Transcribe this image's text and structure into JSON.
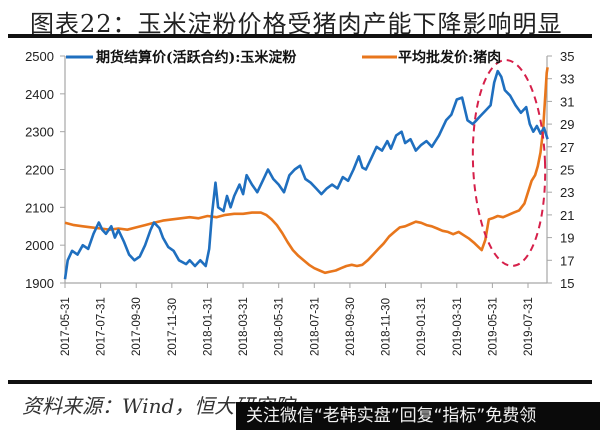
{
  "header": {
    "title": "图表22：玉米淀粉价格受猪肉产能下降影响明显"
  },
  "footer": {
    "source": "资料来源：Wind，恒大研究院",
    "watermark": "关注微信“老韩实盘”回复“指标”免费领"
  },
  "colors": {
    "series_corn": "#1f6fbf",
    "series_pork": "#e8761c",
    "highlight_ellipse": "#d6204a",
    "axis": "#a6a6a6"
  },
  "chart_data": {
    "type": "line",
    "title": "图表22：玉米淀粉价格受猪肉产能下降影响明显",
    "xlabel": "",
    "ylabel_left": "",
    "ylabel_right": "",
    "legend_position": "top",
    "grid": false,
    "x_ticks": [
      "2017-05-31",
      "2017-07-31",
      "2017-09-30",
      "2017-11-30",
      "2018-01-31",
      "2018-03-31",
      "2018-05-31",
      "2018-07-31",
      "2018-09-30",
      "2018-11-30",
      "2019-01-31",
      "2019-03-31",
      "2019-05-31",
      "2019-07-31"
    ],
    "y_left": {
      "ticks": [
        "2500",
        "2400",
        "2300",
        "2200",
        "2100",
        "2000",
        "1900"
      ],
      "range": [
        1900,
        2500
      ]
    },
    "y_right": {
      "ticks": [
        "35",
        "33",
        "31",
        "29",
        "27",
        "25",
        "23",
        "21",
        "19",
        "17",
        "15"
      ],
      "range": [
        15,
        35
      ]
    },
    "x_range_months": [
      0,
      27.1
    ],
    "annotation": "Red dashed ellipse highlighting 2019-04 to 2019-08 where pork price surges and corn starch price falls",
    "series": [
      {
        "name": "期货结算价(活跃合约):玉米淀粉",
        "axis": "left",
        "color": "#1f6fbf",
        "points": [
          [
            0,
            1910
          ],
          [
            0.15,
            1960
          ],
          [
            0.4,
            1985
          ],
          [
            0.7,
            1975
          ],
          [
            1.0,
            2000
          ],
          [
            1.3,
            1990
          ],
          [
            1.6,
            2030
          ],
          [
            1.9,
            2060
          ],
          [
            2.1,
            2040
          ],
          [
            2.3,
            2030
          ],
          [
            2.6,
            2050
          ],
          [
            2.8,
            2020
          ],
          [
            3.0,
            2040
          ],
          [
            3.3,
            2010
          ],
          [
            3.6,
            1975
          ],
          [
            3.9,
            1960
          ],
          [
            4.2,
            1970
          ],
          [
            4.5,
            2000
          ],
          [
            4.8,
            2040
          ],
          [
            5.0,
            2060
          ],
          [
            5.3,
            2045
          ],
          [
            5.5,
            2020
          ],
          [
            5.8,
            1995
          ],
          [
            6.1,
            1985
          ],
          [
            6.4,
            1960
          ],
          [
            6.8,
            1950
          ],
          [
            7.0,
            1960
          ],
          [
            7.3,
            1945
          ],
          [
            7.6,
            1960
          ],
          [
            7.9,
            1945
          ],
          [
            8.1,
            1990
          ],
          [
            8.25,
            2080
          ],
          [
            8.45,
            2165
          ],
          [
            8.6,
            2100
          ],
          [
            8.9,
            2090
          ],
          [
            9.1,
            2130
          ],
          [
            9.3,
            2100
          ],
          [
            9.5,
            2130
          ],
          [
            9.8,
            2160
          ],
          [
            10.0,
            2135
          ],
          [
            10.2,
            2185
          ],
          [
            10.5,
            2160
          ],
          [
            10.8,
            2140
          ],
          [
            11.1,
            2170
          ],
          [
            11.4,
            2200
          ],
          [
            11.7,
            2175
          ],
          [
            12.0,
            2160
          ],
          [
            12.3,
            2140
          ],
          [
            12.6,
            2185
          ],
          [
            12.9,
            2200
          ],
          [
            13.2,
            2210
          ],
          [
            13.5,
            2175
          ],
          [
            13.8,
            2165
          ],
          [
            14.1,
            2150
          ],
          [
            14.4,
            2135
          ],
          [
            14.7,
            2150
          ],
          [
            15.0,
            2160
          ],
          [
            15.3,
            2150
          ],
          [
            15.6,
            2180
          ],
          [
            15.9,
            2170
          ],
          [
            16.2,
            2200
          ],
          [
            16.5,
            2235
          ],
          [
            16.7,
            2205
          ],
          [
            16.9,
            2200
          ],
          [
            17.2,
            2230
          ],
          [
            17.5,
            2260
          ],
          [
            17.8,
            2250
          ],
          [
            18.1,
            2275
          ],
          [
            18.3,
            2255
          ],
          [
            18.6,
            2290
          ],
          [
            18.9,
            2300
          ],
          [
            19.1,
            2270
          ],
          [
            19.4,
            2280
          ],
          [
            19.7,
            2250
          ],
          [
            20.0,
            2265
          ],
          [
            20.3,
            2275
          ],
          [
            20.6,
            2260
          ],
          [
            21.0,
            2290
          ],
          [
            21.4,
            2330
          ],
          [
            21.7,
            2345
          ],
          [
            22.0,
            2385
          ],
          [
            22.3,
            2390
          ],
          [
            22.6,
            2330
          ],
          [
            22.9,
            2320
          ],
          [
            23.1,
            2330
          ],
          [
            23.3,
            2340
          ],
          [
            23.6,
            2355
          ],
          [
            23.9,
            2370
          ],
          [
            24.1,
            2430
          ],
          [
            24.3,
            2460
          ],
          [
            24.5,
            2445
          ],
          [
            24.7,
            2410
          ],
          [
            25.0,
            2395
          ],
          [
            25.3,
            2370
          ],
          [
            25.6,
            2350
          ],
          [
            25.9,
            2365
          ],
          [
            26.1,
            2320
          ],
          [
            26.3,
            2300
          ],
          [
            26.5,
            2315
          ],
          [
            26.7,
            2295
          ],
          [
            26.9,
            2310
          ],
          [
            27.1,
            2280
          ]
        ]
      },
      {
        "name": "平均批发价:猪肉",
        "axis": "right",
        "color": "#e8761c",
        "points": [
          [
            0,
            20.3
          ],
          [
            0.5,
            20.1
          ],
          [
            1.0,
            20.0
          ],
          [
            1.5,
            19.9
          ],
          [
            2.0,
            19.8
          ],
          [
            2.5,
            19.7
          ],
          [
            3.0,
            19.8
          ],
          [
            3.5,
            19.7
          ],
          [
            4.0,
            19.9
          ],
          [
            4.5,
            20.1
          ],
          [
            5.0,
            20.3
          ],
          [
            5.5,
            20.5
          ],
          [
            6.0,
            20.6
          ],
          [
            6.5,
            20.7
          ],
          [
            7.0,
            20.8
          ],
          [
            7.5,
            20.7
          ],
          [
            8.0,
            20.9
          ],
          [
            8.5,
            20.8
          ],
          [
            9.0,
            21.0
          ],
          [
            9.5,
            21.1
          ],
          [
            10.0,
            21.1
          ],
          [
            10.5,
            21.2
          ],
          [
            11.0,
            21.2
          ],
          [
            11.3,
            21.0
          ],
          [
            11.6,
            20.6
          ],
          [
            11.9,
            20.1
          ],
          [
            12.2,
            19.4
          ],
          [
            12.5,
            18.6
          ],
          [
            12.8,
            17.9
          ],
          [
            13.1,
            17.4
          ],
          [
            13.4,
            17.0
          ],
          [
            13.7,
            16.6
          ],
          [
            14.0,
            16.3
          ],
          [
            14.3,
            16.1
          ],
          [
            14.6,
            15.9
          ],
          [
            14.9,
            16.0
          ],
          [
            15.2,
            16.1
          ],
          [
            15.5,
            16.3
          ],
          [
            15.8,
            16.5
          ],
          [
            16.1,
            16.6
          ],
          [
            16.4,
            16.5
          ],
          [
            16.7,
            16.6
          ],
          [
            17.0,
            17.0
          ],
          [
            17.3,
            17.5
          ],
          [
            17.6,
            18.0
          ],
          [
            17.9,
            18.5
          ],
          [
            18.2,
            19.1
          ],
          [
            18.5,
            19.5
          ],
          [
            18.8,
            19.9
          ],
          [
            19.1,
            20.0
          ],
          [
            19.4,
            20.2
          ],
          [
            19.7,
            20.4
          ],
          [
            20.0,
            20.3
          ],
          [
            20.3,
            20.1
          ],
          [
            20.6,
            20.0
          ],
          [
            20.9,
            19.8
          ],
          [
            21.2,
            19.6
          ],
          [
            21.5,
            19.5
          ],
          [
            21.8,
            19.3
          ],
          [
            22.1,
            19.5
          ],
          [
            22.4,
            19.2
          ],
          [
            22.7,
            18.9
          ],
          [
            23.0,
            18.5
          ],
          [
            23.2,
            18.2
          ],
          [
            23.4,
            17.9
          ],
          [
            23.6,
            18.8
          ],
          [
            23.8,
            20.6
          ],
          [
            24.0,
            20.7
          ],
          [
            24.3,
            20.9
          ],
          [
            24.6,
            20.8
          ],
          [
            24.9,
            21.0
          ],
          [
            25.2,
            21.2
          ],
          [
            25.5,
            21.4
          ],
          [
            25.8,
            22.0
          ],
          [
            26.0,
            23.0
          ],
          [
            26.2,
            24.0
          ],
          [
            26.4,
            24.5
          ],
          [
            26.55,
            25.3
          ],
          [
            26.7,
            26.5
          ],
          [
            26.85,
            28.5
          ],
          [
            26.95,
            31.0
          ],
          [
            27.05,
            33.5
          ],
          [
            27.1,
            34.0
          ]
        ]
      }
    ]
  },
  "legend": {
    "items": [
      {
        "label": "期货结算价(活跃合约):玉米淀粉",
        "color": "#1f6fbf"
      },
      {
        "label": "平均批发价:猪肉",
        "color": "#e8761c"
      }
    ]
  }
}
